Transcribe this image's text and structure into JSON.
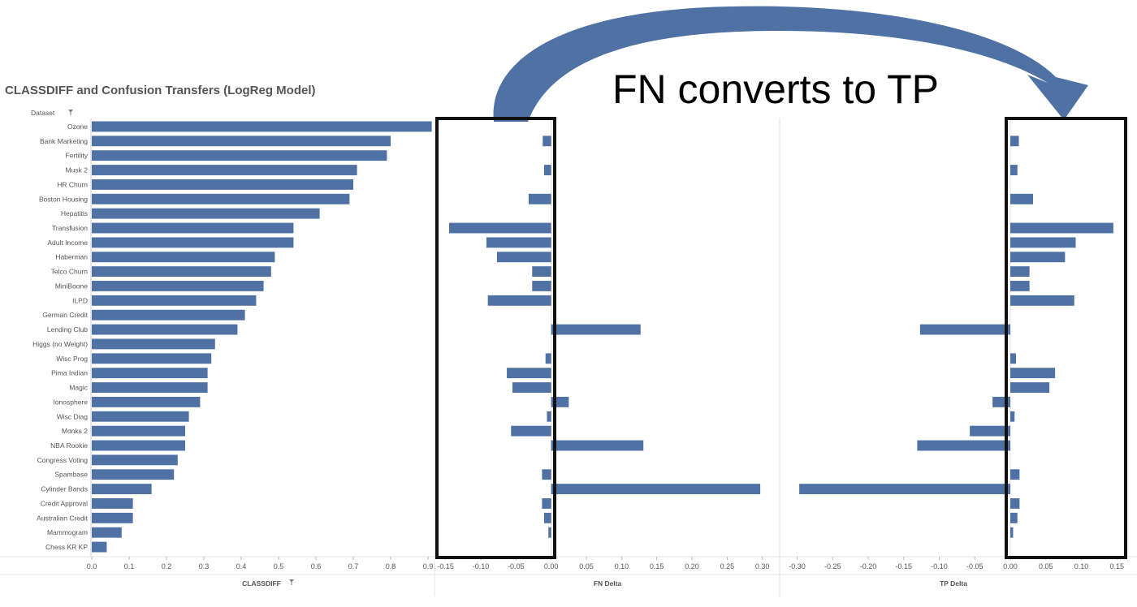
{
  "header": {
    "title": "CLASSDIFF and Confusion Transfers (LogReg Model)",
    "dataset_label": "Dataset",
    "filter_icon": "filter-icon"
  },
  "annotation": {
    "text": "FN converts to TP",
    "arrow_icon": "curved-arrow-icon"
  },
  "colors": {
    "bar": "#4f71a4",
    "box": "#111111",
    "arrow": "#4f71a4",
    "grid": "#e6e6e6",
    "text": "#555555"
  },
  "chart_data": [
    {
      "type": "bar",
      "orientation": "horizontal",
      "xlabel": "CLASSDIFF",
      "xlim": [
        0,
        0.9
      ],
      "ticks": [
        "0.0",
        "0.1",
        "0.2",
        "0.3",
        "0.4",
        "0.5",
        "0.6",
        "0.7",
        "0.8",
        "0.9"
      ],
      "tick_values": [
        0,
        0.1,
        0.2,
        0.3,
        0.4,
        0.5,
        0.6,
        0.7,
        0.8,
        0.9
      ],
      "categories": [
        "Ozone",
        "Bank Marketing",
        "Fertility",
        "Musk 2",
        "HR Churn",
        "Boston Housing",
        "Hepatitis",
        "Transfusion",
        "Adult Income",
        "Haberman",
        "Telco Churn",
        "MiniBoone",
        "ILPD",
        "German Credit",
        "Lending Club",
        "Higgs (no Weight)",
        "Wisc Prog",
        "Pima Indian",
        "Magic",
        "Ionosphere",
        "Wisc Diag",
        "Monks 2",
        "NBA Rookie",
        "Congress Voting",
        "Spambase",
        "Cylinder Bands",
        "Credit Approval",
        "Australian Credit",
        "Mammogram",
        "Chess KR KP"
      ],
      "values": [
        0.91,
        0.8,
        0.79,
        0.71,
        0.7,
        0.69,
        0.61,
        0.54,
        0.54,
        0.49,
        0.48,
        0.46,
        0.44,
        0.41,
        0.39,
        0.33,
        0.32,
        0.31,
        0.31,
        0.29,
        0.26,
        0.25,
        0.25,
        0.23,
        0.22,
        0.16,
        0.11,
        0.11,
        0.08,
        0.04
      ]
    },
    {
      "type": "bar",
      "orientation": "horizontal",
      "xlabel": "FN Delta",
      "xlim": [
        -0.16,
        0.32
      ],
      "ticks": [
        "-0.15",
        "-0.10",
        "-0.05",
        "0.00",
        "0.05",
        "0.10",
        "0.15",
        "0.20",
        "0.25",
        "0.30"
      ],
      "tick_values": [
        -0.15,
        -0.1,
        -0.05,
        0,
        0.05,
        0.1,
        0.15,
        0.2,
        0.25,
        0.3
      ],
      "values": [
        0,
        -0.012,
        0,
        -0.01,
        0,
        -0.032,
        0,
        -0.145,
        -0.092,
        -0.077,
        -0.027,
        -0.027,
        -0.09,
        0,
        0.127,
        0,
        -0.008,
        -0.063,
        -0.055,
        0.025,
        -0.006,
        -0.057,
        0.131,
        0,
        -0.013,
        0.297,
        -0.013,
        -0.01,
        -0.004,
        0
      ]
    },
    {
      "type": "bar",
      "orientation": "horizontal",
      "xlabel": "TP Delta",
      "xlim": [
        -0.32,
        0.16
      ],
      "ticks": [
        "-0.30",
        "-0.25",
        "-0.20",
        "-0.15",
        "-0.10",
        "-0.05",
        "0.00",
        "0.05",
        "0.10",
        "0.15"
      ],
      "tick_values": [
        -0.3,
        -0.25,
        -0.2,
        -0.15,
        -0.1,
        -0.05,
        0,
        0.05,
        0.1,
        0.15
      ],
      "values": [
        0,
        0.012,
        0,
        0.01,
        0,
        0.032,
        0,
        0.145,
        0.092,
        0.077,
        0.027,
        0.027,
        0.09,
        0,
        -0.127,
        0,
        0.008,
        0.063,
        0.055,
        -0.025,
        0.006,
        -0.057,
        -0.131,
        0,
        0.013,
        -0.297,
        0.013,
        0.01,
        0.004,
        0
      ]
    }
  ]
}
